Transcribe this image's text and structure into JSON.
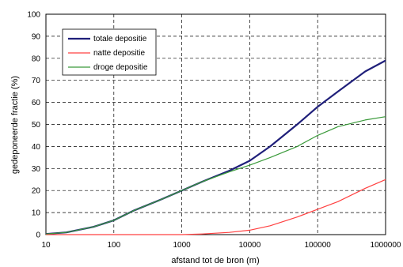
{
  "chart_data": {
    "type": "line",
    "xlabel": "afstand tot de bron (m)",
    "ylabel": "gedeponeerde fractie (%)",
    "xscale": "log",
    "xlim": [
      10,
      1000000
    ],
    "ylim": [
      0,
      100
    ],
    "xticks": [
      "10",
      "100",
      "1000",
      "10000",
      "100000",
      "1000000"
    ],
    "yticks": [
      "0",
      "10",
      "20",
      "30",
      "40",
      "50",
      "60",
      "70",
      "80",
      "90",
      "100"
    ],
    "grid": true,
    "legend_position": "top-left",
    "series": [
      {
        "name": "totale depositie",
        "color": "#1f1f7a",
        "x": [
          10,
          20,
          50,
          100,
          200,
          500,
          1000,
          2000,
          5000,
          10000,
          20000,
          50000,
          100000,
          200000,
          500000,
          1000000
        ],
        "y": [
          0.3,
          1,
          3.5,
          6.5,
          11,
          16,
          20,
          24,
          29,
          33.5,
          40,
          50,
          58,
          65,
          74,
          79
        ]
      },
      {
        "name": "natte depositie",
        "color": "#ff4040",
        "x": [
          10,
          100,
          1000,
          2000,
          5000,
          10000,
          20000,
          50000,
          100000,
          200000,
          500000,
          1000000
        ],
        "y": [
          0,
          0,
          0,
          0.3,
          1,
          2,
          4,
          8,
          11.5,
          15,
          21,
          25
        ]
      },
      {
        "name": "droge depositie",
        "color": "#3a9a3a",
        "x": [
          10,
          20,
          50,
          100,
          200,
          500,
          1000,
          2000,
          5000,
          10000,
          20000,
          50000,
          100000,
          200000,
          500000,
          1000000
        ],
        "y": [
          0.3,
          1,
          3.5,
          6.5,
          11,
          16,
          20,
          24,
          28.5,
          31.5,
          35,
          40,
          45,
          49,
          52,
          53.5
        ]
      }
    ]
  }
}
